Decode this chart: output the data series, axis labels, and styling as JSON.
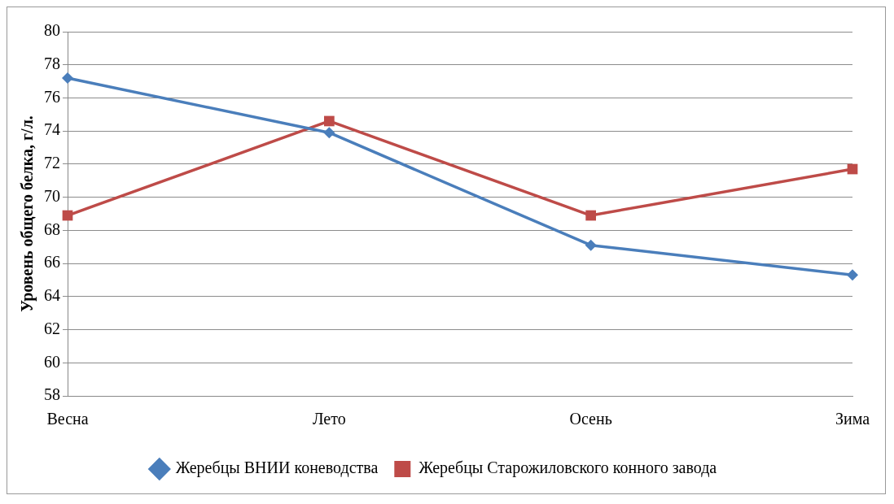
{
  "chart_data": {
    "type": "line",
    "ylabel": "Уровень общего белка, г/л.",
    "categories": [
      "Весна",
      "Лето",
      "Осень",
      "Зима"
    ],
    "series": [
      {
        "name": "Жеребцы ВНИИ коневодства",
        "color": "#4a7ebb",
        "marker": "diamond",
        "values": [
          77.2,
          73.9,
          67.1,
          65.3
        ]
      },
      {
        "name": "Жеребцы Старожиловского конного завода",
        "color": "#be4b48",
        "marker": "square",
        "values": [
          68.9,
          74.6,
          68.9,
          71.7
        ]
      }
    ],
    "ylim": [
      58,
      80
    ],
    "yticks": [
      58,
      60,
      62,
      64,
      66,
      68,
      70,
      72,
      74,
      76,
      78,
      80
    ],
    "grid": "y",
    "legend": "bottom",
    "line_style": "solid"
  }
}
